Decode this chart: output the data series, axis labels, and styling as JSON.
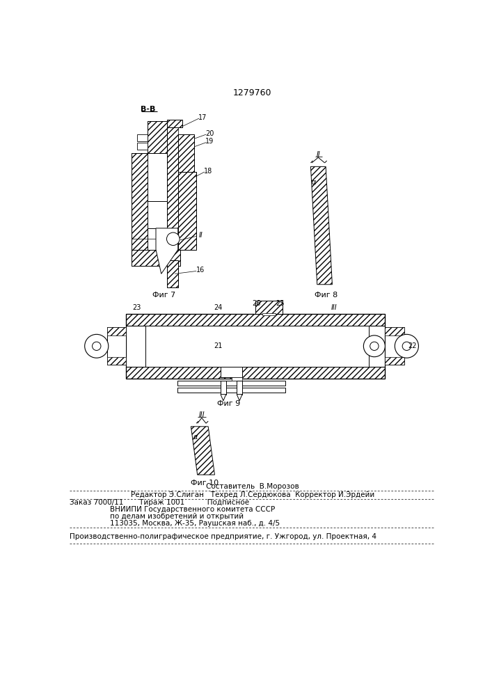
{
  "patent_number": "1279760",
  "bg_color": "#ffffff",
  "line_color": "#000000",
  "fig_width": 7.07,
  "fig_height": 10.0,
  "section_label_BB": "B-B",
  "fig_labels": [
    "Фиг 7",
    "Фиг 8",
    "Фиг 9",
    "Фиг 10"
  ],
  "footer_line1": "Составитель  В.Морозов",
  "footer_line2": "Редактор Э.Слиган   Техред Л.Сердюкова  Корректор И.Эрдейи",
  "footer_line3": "Заказ 7000/11       Тираж 1001          Подписное",
  "footer_line4": "ВНИИПИ Государственного комитета СССР",
  "footer_line5": "по делам изобретений и открытий",
  "footer_line6": "113035, Москва, Ж-35, Раушская наб., д. 4/5",
  "footer_line7": "Производственно-полиграфическое предприятие, г. Ужгород, ул. Проектная, 4"
}
